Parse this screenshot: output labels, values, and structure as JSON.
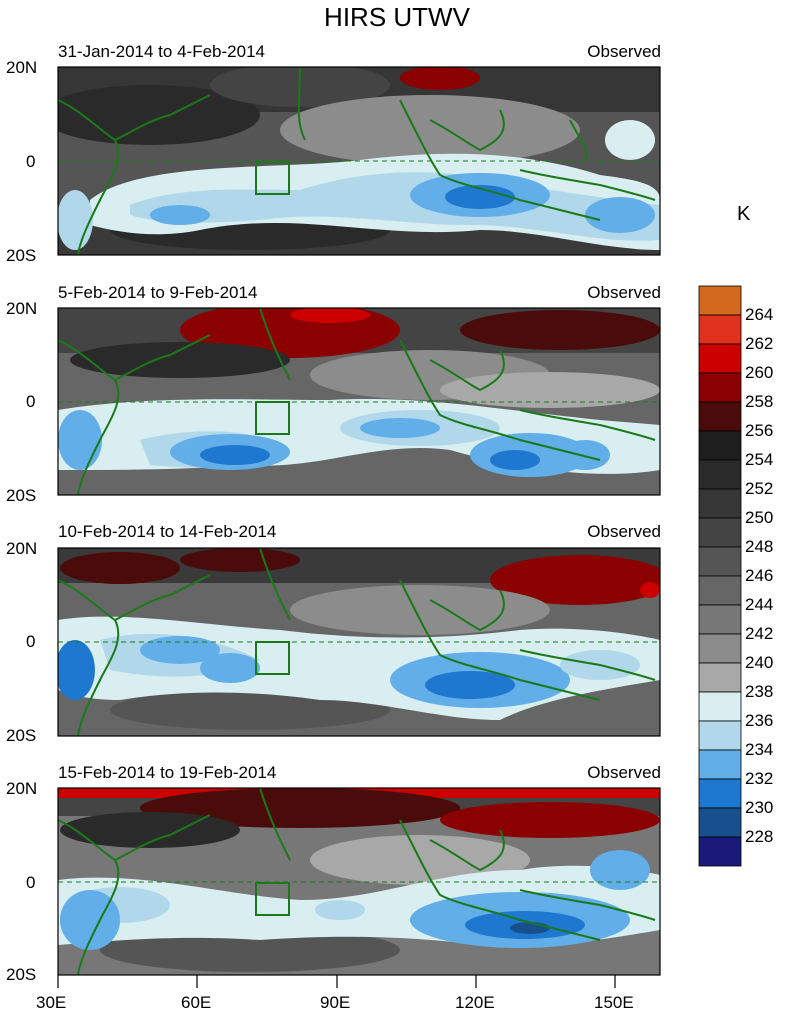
{
  "title": "HIRS UTWV",
  "unit": "K",
  "panels": [
    {
      "date_range": "31-Jan-2014 to 4-Feb-2014",
      "tag": "Observed"
    },
    {
      "date_range": "5-Feb-2014 to 9-Feb-2014",
      "tag": "Observed"
    },
    {
      "date_range": "10-Feb-2014 to 14-Feb-2014",
      "tag": "Observed"
    },
    {
      "date_range": "15-Feb-2014 to 19-Feb-2014",
      "tag": "Observed"
    }
  ],
  "lat_labels": [
    "20N",
    "0",
    "20S"
  ],
  "lon_labels": [
    "30E",
    "60E",
    "90E",
    "120E",
    "150E"
  ],
  "colorbar": {
    "levels": [
      "264",
      "262",
      "260",
      "258",
      "256",
      "254",
      "252",
      "250",
      "248",
      "246",
      "244",
      "242",
      "240",
      "238",
      "236",
      "234",
      "232",
      "230",
      "228"
    ],
    "colors": [
      "#d2691e",
      "#e0301e",
      "#cc0000",
      "#8b0000",
      "#4a0b0b",
      "#1e1e1e",
      "#2a2a2a",
      "#363636",
      "#444444",
      "#555555",
      "#666666",
      "#777777",
      "#8c8c8c",
      "#a8a8a8",
      "#d8eef0",
      "#b0d8ea",
      "#62aee8",
      "#1f78d0",
      "#17508c",
      "#1a1a7a"
    ]
  },
  "colors": {
    "coast": "#1a7a1a",
    "equator": "#1a7a1a",
    "box": "#1a7a1a"
  }
}
